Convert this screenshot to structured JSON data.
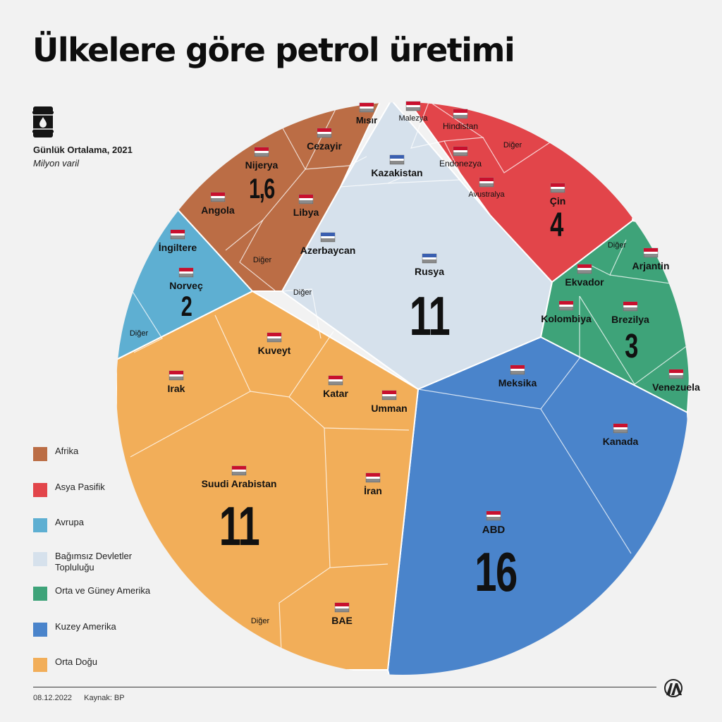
{
  "title": "Ülkelere göre petrol üretimi",
  "subtitle": "Günlük Ortalama, 2021",
  "unit": "Milyon varil",
  "icons": {
    "barrel": "oil-barrel-icon",
    "logo": "aa-logo"
  },
  "footer": {
    "date": "08.12.2022",
    "source": "Kaynak: BP"
  },
  "legend": [
    {
      "label": "Afrika",
      "color": "#bb6d45"
    },
    {
      "label": "Asya Pasifik",
      "color": "#e2454a"
    },
    {
      "label": "Avrupa",
      "color": "#5eafd2"
    },
    {
      "label": "Bağımsız Devletler Topluluğu",
      "color": "#d6e1ec"
    },
    {
      "label": "Orta ve Güney Amerika",
      "color": "#3ea379"
    },
    {
      "label": "Kuzey Amerika",
      "color": "#4a84cb"
    },
    {
      "label": "Orta Doğu",
      "color": "#f2ae59"
    }
  ],
  "chart_data": {
    "type": "voronoi-treemap",
    "unit": "Milyon varil",
    "regions": [
      {
        "name": "Kuzey Amerika",
        "value": 16,
        "color": "#4a84cb",
        "countries": [
          {
            "name": "ABD",
            "value": 16
          },
          {
            "name": "Kanada"
          },
          {
            "name": "Meksika"
          }
        ]
      },
      {
        "name": "Orta Doğu",
        "value": 11,
        "color": "#f2ae59",
        "countries": [
          {
            "name": "Suudi Arabistan",
            "value": 11
          },
          {
            "name": "Irak"
          },
          {
            "name": "Kuveyt"
          },
          {
            "name": "Katar"
          },
          {
            "name": "Umman"
          },
          {
            "name": "İran"
          },
          {
            "name": "BAE"
          },
          {
            "name": "Diğer"
          }
        ]
      },
      {
        "name": "Bağımsız Devletler Topluluğu",
        "value": 11,
        "color": "#d6e1ec",
        "countries": [
          {
            "name": "Rusya",
            "value": 11
          },
          {
            "name": "Kazakistan"
          },
          {
            "name": "Azerbaycan"
          },
          {
            "name": "Diğer"
          }
        ]
      },
      {
        "name": "Asya Pasifik",
        "value": 4,
        "color": "#e2454a",
        "countries": [
          {
            "name": "Çin",
            "value": 4
          },
          {
            "name": "Malezya"
          },
          {
            "name": "Hindistan"
          },
          {
            "name": "Endonezya"
          },
          {
            "name": "Avustralya"
          },
          {
            "name": "Diğer"
          }
        ]
      },
      {
        "name": "Orta ve Güney Amerika",
        "value": 3,
        "color": "#3ea379",
        "countries": [
          {
            "name": "Brezilya",
            "value": 3
          },
          {
            "name": "Arjantin"
          },
          {
            "name": "Ekvador"
          },
          {
            "name": "Kolombiya"
          },
          {
            "name": "Venezuela"
          },
          {
            "name": "Diğer"
          }
        ]
      },
      {
        "name": "Avrupa",
        "value": 2,
        "color": "#5eafd2",
        "countries": [
          {
            "name": "Norveç",
            "value": 2
          },
          {
            "name": "İngiltere"
          },
          {
            "name": "Diğer"
          }
        ]
      },
      {
        "name": "Afrika",
        "value": 1.6,
        "value_label": "1,6",
        "color": "#bb6d45",
        "countries": [
          {
            "name": "Nijerya",
            "value": 1.6,
            "value_label": "1,6"
          },
          {
            "name": "Angola"
          },
          {
            "name": "Libya"
          },
          {
            "name": "Cezayir"
          },
          {
            "name": "Mısır"
          },
          {
            "name": "Diğer"
          }
        ]
      }
    ]
  }
}
